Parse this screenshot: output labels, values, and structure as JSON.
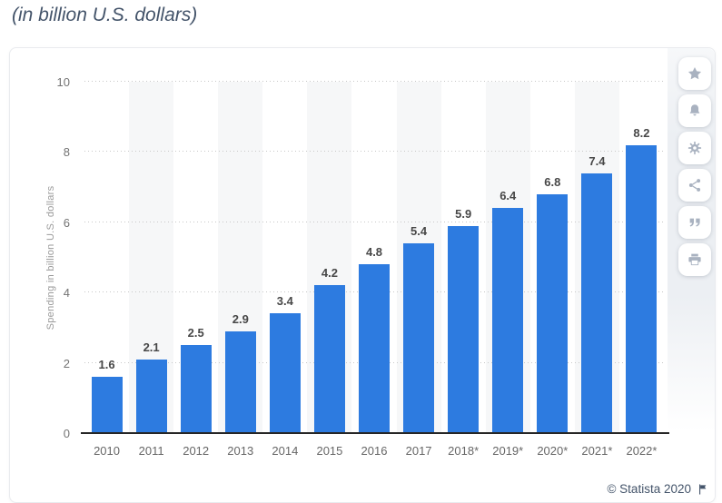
{
  "page": {
    "title": "(in billion U.S. dollars)"
  },
  "chart_data": {
    "type": "bar",
    "title": "(in billion U.S. dollars)",
    "categories": [
      "2010",
      "2011",
      "2012",
      "2013",
      "2014",
      "2015",
      "2016",
      "2017",
      "2018*",
      "2019*",
      "2020*",
      "2021*",
      "2022*"
    ],
    "values": [
      1.6,
      2.1,
      2.5,
      2.9,
      3.4,
      4.2,
      4.8,
      5.4,
      5.9,
      6.4,
      6.8,
      7.4,
      8.2
    ],
    "xlabel": "",
    "ylabel": "Spending in billion U.S. dollars",
    "ylim": [
      0,
      10
    ],
    "yticks": [
      0,
      2,
      4,
      6,
      8,
      10
    ],
    "bar_color": "#2d7be0",
    "value_labels_shown": true,
    "grid": "horizontal-dotted",
    "legend": "none",
    "alternating_band_color": "#f6f7f8"
  },
  "toolbar": {
    "items": [
      {
        "name": "favorite",
        "icon": "star-icon"
      },
      {
        "name": "alerts",
        "icon": "bell-icon"
      },
      {
        "name": "settings",
        "icon": "gear-icon"
      },
      {
        "name": "share",
        "icon": "share-icon"
      },
      {
        "name": "cite",
        "icon": "quote-icon"
      },
      {
        "name": "print",
        "icon": "print-icon"
      }
    ]
  },
  "footer": {
    "copyright": "© Statista 2020",
    "flag_icon": "report-flag"
  }
}
